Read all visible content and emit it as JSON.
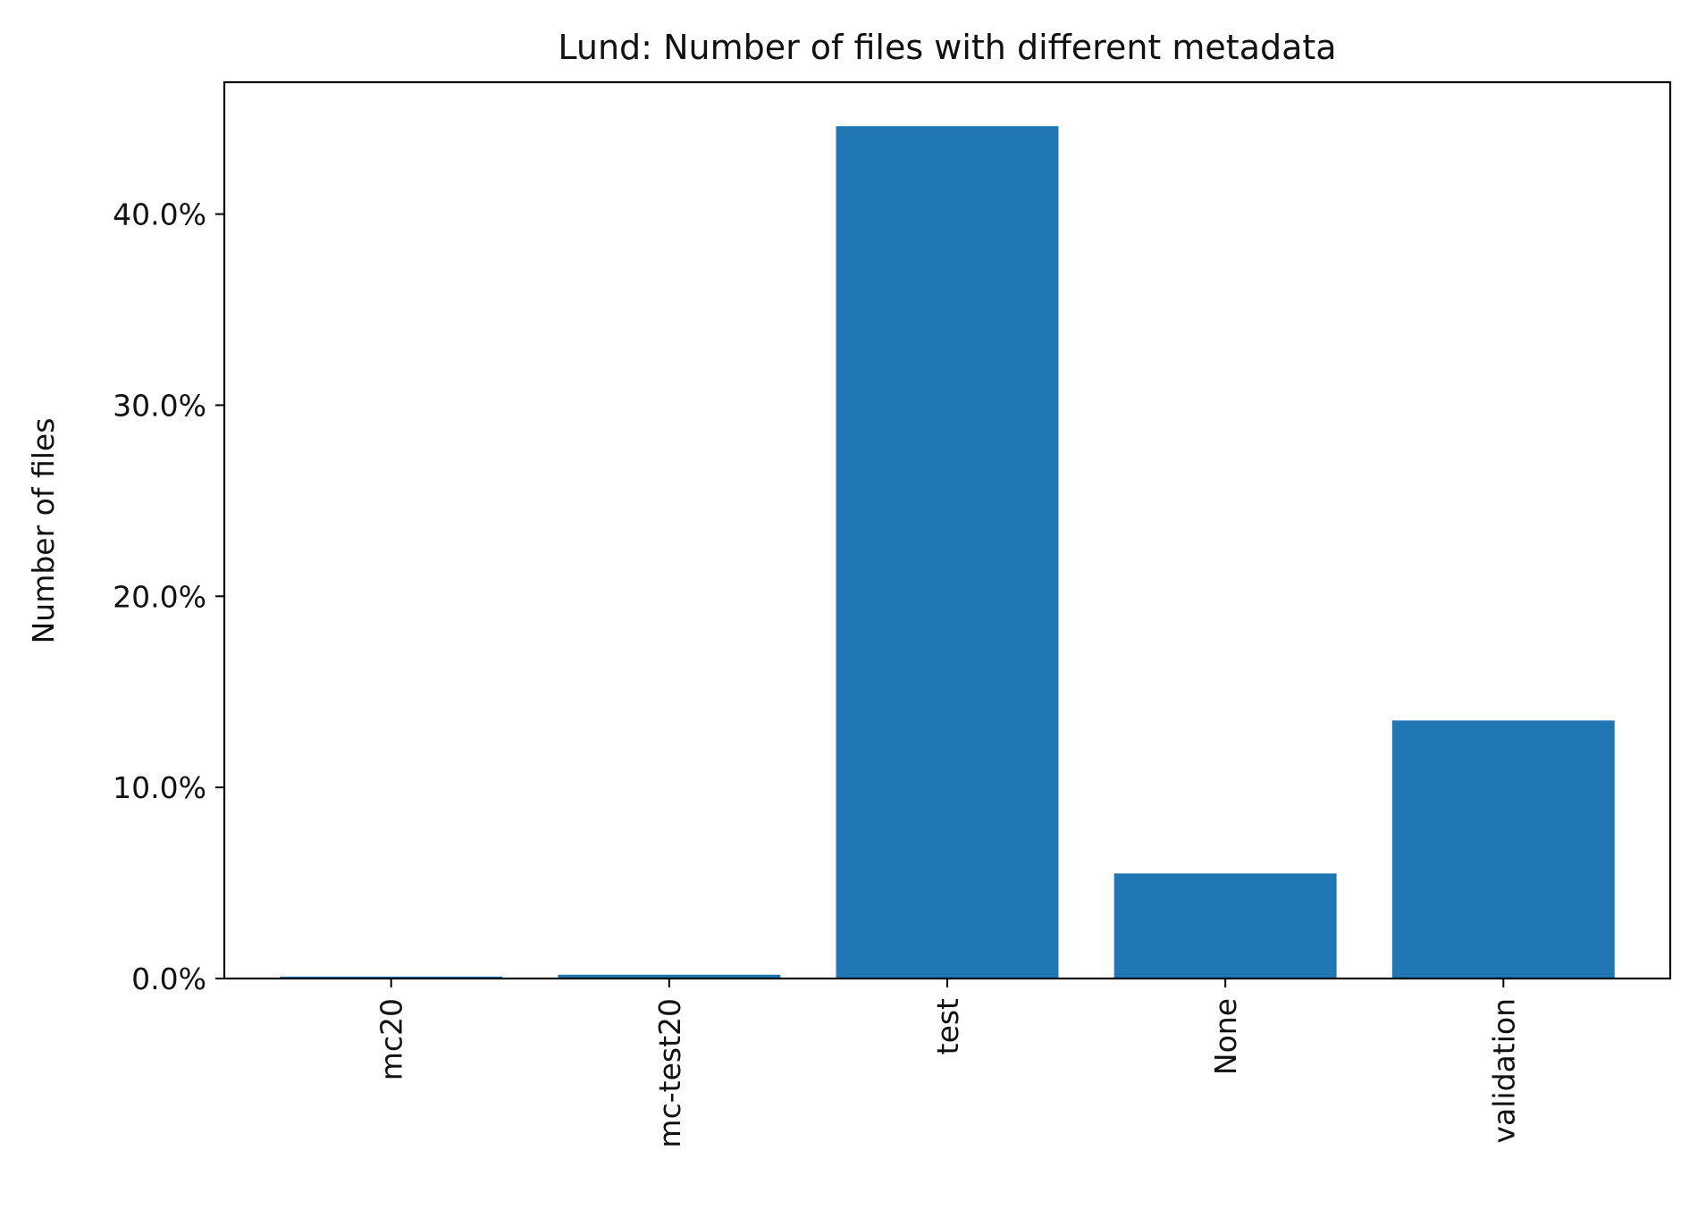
{
  "chart_data": {
    "type": "bar",
    "title": "Lund: Number of files with different metadata",
    "xlabel": "",
    "ylabel": "Number of files",
    "categories": [
      "mc20",
      "mc-test20",
      "test",
      "None",
      "validation"
    ],
    "values": [
      0.1,
      0.2,
      44.6,
      5.5,
      13.5
    ],
    "value_unit": "percent",
    "ylim": [
      0,
      46.9
    ],
    "yticks": [
      0,
      10,
      20,
      30,
      40
    ],
    "ytick_labels": [
      "0.0%",
      "10.0%",
      "20.0%",
      "30.0%",
      "40.0%"
    ],
    "bar_color": "#2077b4",
    "grid": false,
    "legend": "none"
  }
}
